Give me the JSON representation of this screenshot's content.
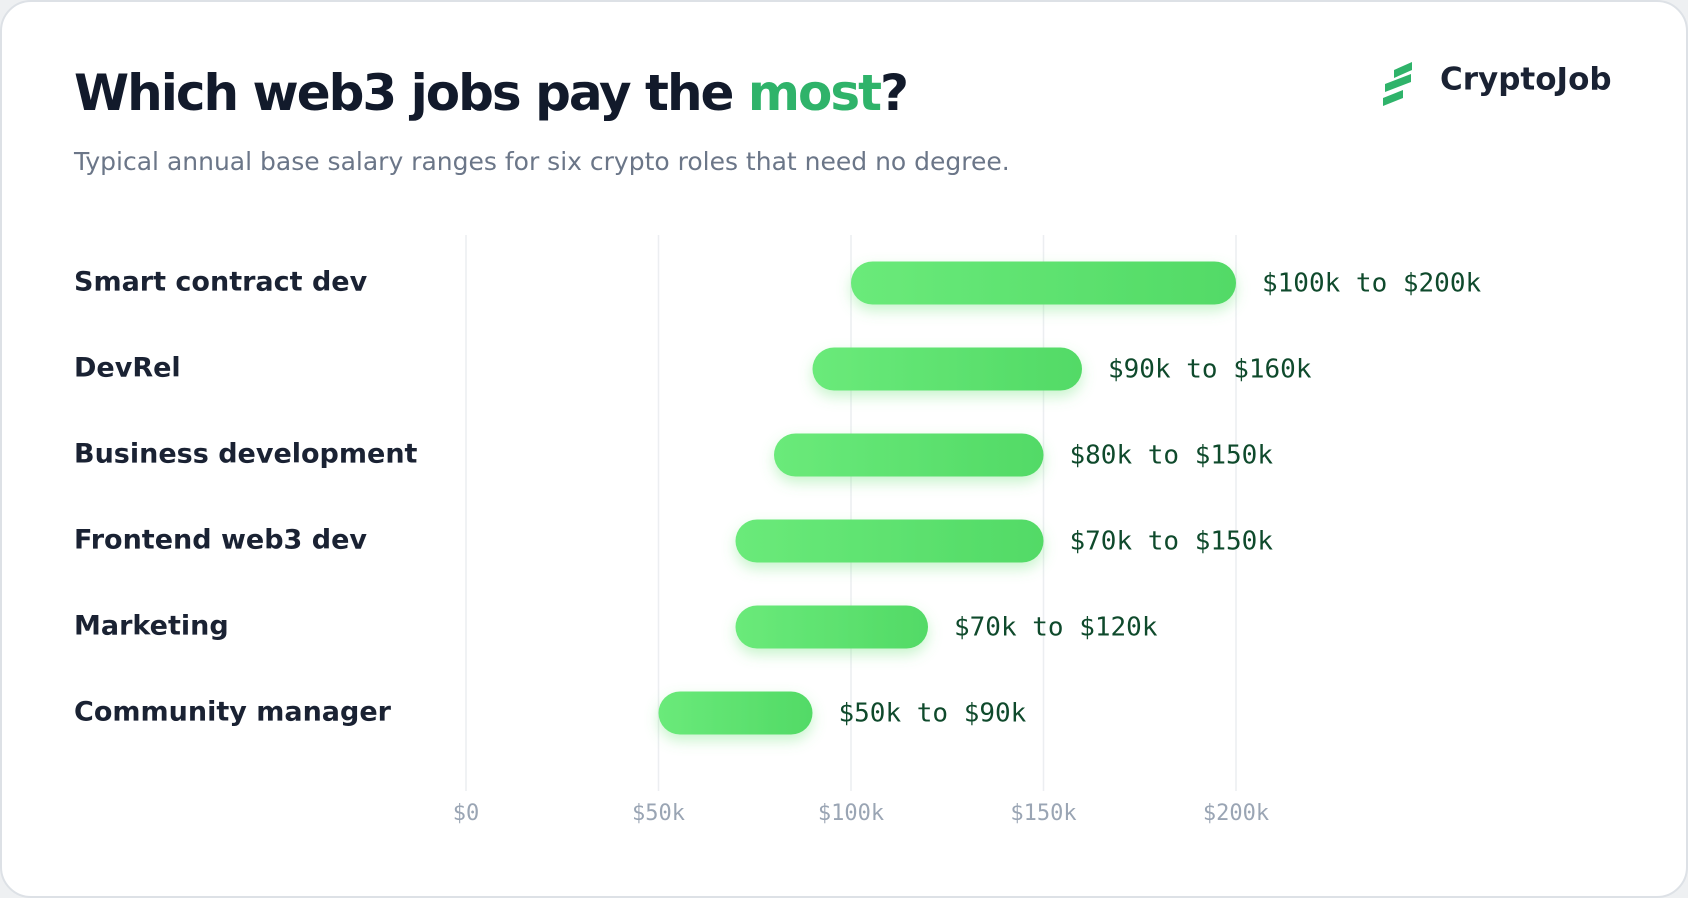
{
  "brand": "CryptoJob",
  "chart_data": {
    "type": "range-bar",
    "title_parts": [
      "Which web3 jobs pay the ",
      "most",
      "?"
    ],
    "subtitle": "Typical annual base salary ranges for six crypto roles that need no degree.",
    "categories": [
      "Smart contract dev",
      "DevRel",
      "Business development",
      "Frontend web3 dev",
      "Marketing",
      "Community manager"
    ],
    "low": [
      100000,
      90000,
      80000,
      70000,
      70000,
      50000
    ],
    "high": [
      200000,
      160000,
      150000,
      150000,
      120000,
      90000
    ],
    "value_labels": [
      "$100k to $200k",
      "$90k to $160k",
      "$80k to $150k",
      "$70k to $150k",
      "$70k to $120k",
      "$50k to $90k"
    ],
    "color": "#5ddf6c",
    "highlight_color": "#2fb36a",
    "xlim": [
      0,
      200000
    ],
    "xticks": [
      {
        "value": 0,
        "label": "$0"
      },
      {
        "value": 50000,
        "label": "$50k"
      },
      {
        "value": 100000,
        "label": "$100k"
      },
      {
        "value": 150000,
        "label": "$150k"
      },
      {
        "value": 200000,
        "label": "$200k"
      }
    ],
    "grid": true
  }
}
